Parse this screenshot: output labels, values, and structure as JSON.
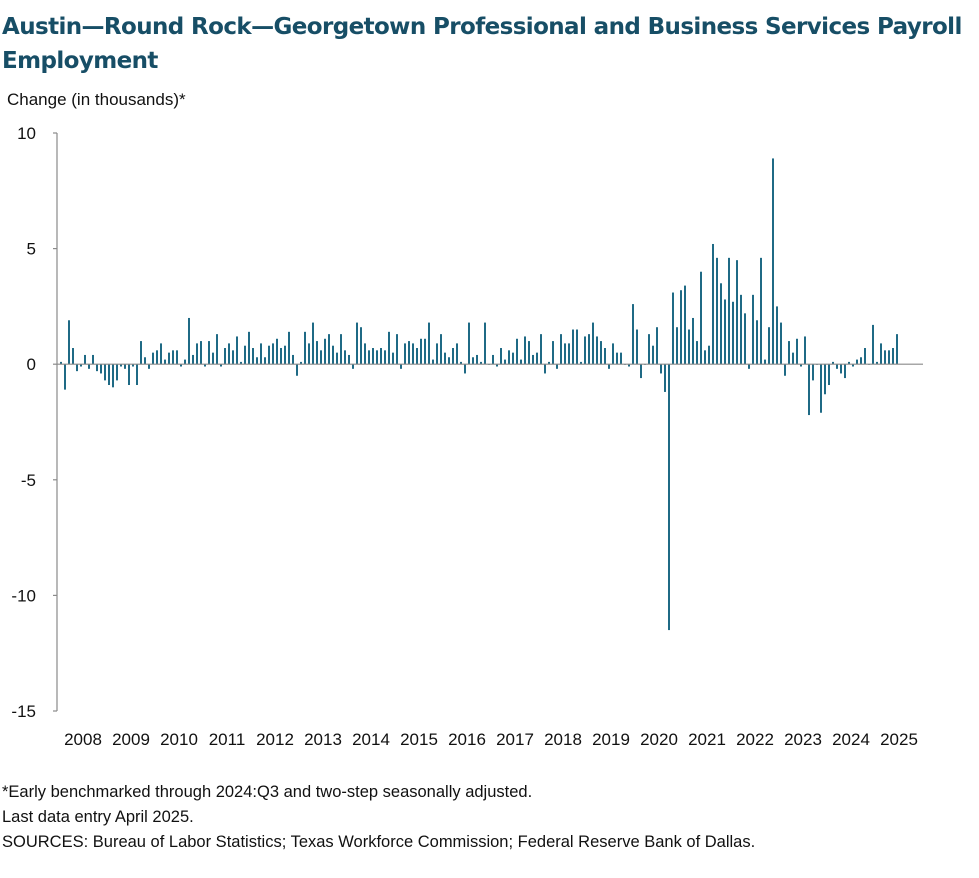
{
  "title": "Austin—Round Rock—Georgetown Professional and Business Services Payroll Employment",
  "notes": [
    "*Early benchmarked through 2024:Q3 and two-step seasonally adjusted.",
    "Last data entry April 2025.",
    "SOURCES: Bureau of Labor Statistics; Texas Workforce Commission; Federal Reserve Bank of Dallas."
  ],
  "colors": {
    "bar": "#1f6a85",
    "title": "#174e66",
    "axis": "#8a8a8a"
  },
  "chart_data": {
    "type": "bar",
    "title": "Austin—Round Rock—Georgetown Professional and Business Services Payroll Employment",
    "ylabel": "Change (in thousands)*",
    "xlabel": "",
    "ylim": [
      -15,
      10
    ],
    "yticks": [
      10,
      5,
      0,
      -5,
      -10,
      -15
    ],
    "xtick_labels": [
      "2008",
      "2009",
      "2010",
      "2011",
      "2012",
      "2013",
      "2014",
      "2015",
      "2016",
      "2017",
      "2018",
      "2019",
      "2020",
      "2021",
      "2022",
      "2023",
      "2024",
      "2025"
    ],
    "grid": false,
    "start": "2008-01",
    "end": "2025-04",
    "frequency": "monthly",
    "values": [
      0.1,
      -1.1,
      1.9,
      0.7,
      -0.3,
      -0.1,
      0.4,
      -0.2,
      0.4,
      -0.3,
      -0.4,
      -0.7,
      -0.9,
      -1.0,
      -0.7,
      -0.1,
      -0.2,
      -0.9,
      -0.1,
      -0.9,
      1.0,
      0.3,
      -0.2,
      0.5,
      0.6,
      0.9,
      0.2,
      0.5,
      0.6,
      0.6,
      -0.1,
      0.2,
      2.0,
      0.4,
      0.9,
      1.0,
      -0.1,
      1.0,
      0.5,
      1.3,
      -0.1,
      0.7,
      0.9,
      0.6,
      1.2,
      0.1,
      0.8,
      1.4,
      0.7,
      0.3,
      0.9,
      0.3,
      0.8,
      0.9,
      1.1,
      0.7,
      0.8,
      1.4,
      0.4,
      -0.5,
      0.1,
      1.4,
      0.9,
      1.8,
      1.0,
      0.6,
      1.1,
      1.3,
      0.8,
      0.5,
      1.3,
      0.6,
      0.4,
      -0.2,
      1.8,
      1.6,
      0.9,
      0.6,
      0.7,
      0.6,
      0.7,
      0.6,
      1.4,
      0.5,
      1.3,
      -0.2,
      0.9,
      1.0,
      0.9,
      0.7,
      1.1,
      1.1,
      1.8,
      0.2,
      0.9,
      1.3,
      0.5,
      0.3,
      0.7,
      0.9,
      0.1,
      -0.4,
      1.8,
      0.3,
      0.4,
      0.1,
      1.8,
      0.0,
      0.4,
      -0.1,
      0.7,
      0.2,
      0.6,
      0.5,
      1.1,
      0.2,
      1.2,
      1.0,
      0.4,
      0.5,
      1.3,
      -0.4,
      0.1,
      1.0,
      -0.2,
      1.3,
      0.9,
      0.9,
      1.5,
      1.5,
      0.1,
      1.2,
      1.3,
      1.8,
      1.2,
      1.0,
      0.7,
      -0.2,
      0.9,
      0.5,
      0.5,
      0.0,
      -0.1,
      2.6,
      1.5,
      -0.6,
      0.0,
      1.3,
      0.8,
      1.6,
      -0.4,
      -1.2,
      -11.5,
      3.1,
      1.6,
      3.2,
      3.4,
      1.5,
      2.0,
      1.0,
      4.0,
      0.6,
      0.8,
      5.2,
      4.6,
      3.5,
      2.8,
      4.6,
      2.7,
      4.5,
      3.0,
      2.2,
      -0.2,
      3.0,
      1.9,
      4.6,
      0.2,
      1.6,
      8.9,
      2.5,
      1.8,
      -0.5,
      1.0,
      0.5,
      1.1,
      -0.1,
      1.2,
      -2.2,
      -0.7,
      0.0,
      -2.1,
      -1.3,
      -0.9,
      0.1,
      -0.2,
      -0.4,
      -0.6,
      0.1,
      -0.1,
      0.2,
      0.3,
      0.7,
      0.0,
      1.7,
      0.1,
      0.9,
      0.6,
      0.6,
      0.7,
      1.3
    ]
  }
}
